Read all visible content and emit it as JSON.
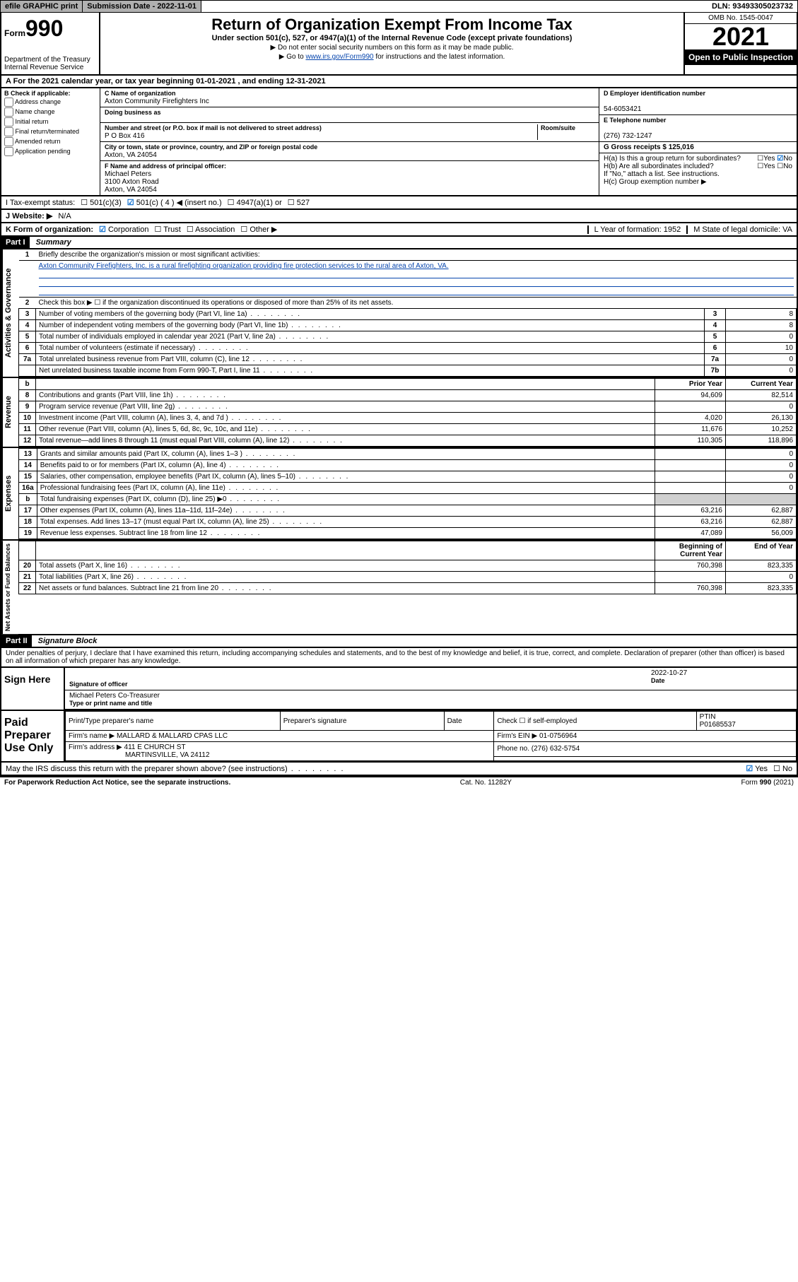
{
  "topbar": {
    "efile": "efile GRAPHIC print",
    "subdate_label": "Submission Date - 2022-11-01",
    "dln": "DLN: 93493305023732"
  },
  "header": {
    "form_small": "Form",
    "form_big": "990",
    "dept": "Department of the Treasury",
    "irs": "Internal Revenue Service",
    "title": "Return of Organization Exempt From Income Tax",
    "subtitle": "Under section 501(c), 527, or 4947(a)(1) of the Internal Revenue Code (except private foundations)",
    "note1": "▶ Do not enter social security numbers on this form as it may be made public.",
    "note2_pre": "▶ Go to ",
    "note2_link": "www.irs.gov/Form990",
    "note2_post": " for instructions and the latest information.",
    "omb": "OMB No. 1545-0047",
    "year": "2021",
    "open": "Open to Public Inspection"
  },
  "rowA": "A For the 2021 calendar year, or tax year beginning 01-01-2021    , and ending 12-31-2021",
  "colB": {
    "title": "B Check if applicable:",
    "opts": [
      "Address change",
      "Name change",
      "Initial return",
      "Final return/terminated",
      "Amended return",
      "Application pending"
    ]
  },
  "org": {
    "c_label": "C Name of organization",
    "c_name": "Axton Community Firefighters Inc",
    "dba": "Doing business as",
    "addr_label": "Number and street (or P.O. box if mail is not delivered to street address)",
    "addr_room": "Room/suite",
    "addr": "P O Box 416",
    "city_label": "City or town, state or province, country, and ZIP or foreign postal code",
    "city": "Axton, VA  24054",
    "f_label": "F Name and address of principal officer:",
    "f_name": "Michael Peters",
    "f_addr1": "3100 Axton Road",
    "f_addr2": "Axton, VA  24054"
  },
  "right": {
    "d_label": "D Employer identification number",
    "d_val": "54-6053421",
    "e_label": "E Telephone number",
    "e_val": "(276) 732-1247",
    "g_label": "G Gross receipts $ 125,016",
    "ha": "H(a)  Is this a group return for subordinates?",
    "hb": "H(b)  Are all subordinates included?",
    "hb_note": "If \"No,\" attach a list. See instructions.",
    "hc": "H(c)  Group exemption number ▶"
  },
  "rowI": {
    "label": "I   Tax-exempt status:",
    "opt1": "501(c)(3)",
    "opt2": "501(c) ( 4 ) ◀ (insert no.)",
    "opt3": "4947(a)(1) or",
    "opt4": "527"
  },
  "rowJ": {
    "label": "J   Website: ▶",
    "val": "N/A"
  },
  "rowK": {
    "label": "K Form of organization:",
    "opts": [
      "Corporation",
      "Trust",
      "Association",
      "Other ▶"
    ],
    "l": "L Year of formation: 1952",
    "m": "M State of legal domicile: VA"
  },
  "part1": {
    "header": "Part I",
    "title": "Summary",
    "line1": "Briefly describe the organization's mission or most significant activities:",
    "mission": "Axton Community Firefighters, Inc. is a rural firefighting organization providing fire protection services to the rural area of Axton, VA.",
    "line2": "Check this box ▶ ☐  if the organization discontinued its operations or disposed of more than 25% of its net assets."
  },
  "governance": [
    {
      "n": "3",
      "t": "Number of voting members of the governing body (Part VI, line 1a)",
      "r": "3",
      "v": "8"
    },
    {
      "n": "4",
      "t": "Number of independent voting members of the governing body (Part VI, line 1b)",
      "r": "4",
      "v": "8"
    },
    {
      "n": "5",
      "t": "Total number of individuals employed in calendar year 2021 (Part V, line 2a)",
      "r": "5",
      "v": "0"
    },
    {
      "n": "6",
      "t": "Total number of volunteers (estimate if necessary)",
      "r": "6",
      "v": "10"
    },
    {
      "n": "7a",
      "t": "Total unrelated business revenue from Part VIII, column (C), line 12",
      "r": "7a",
      "v": "0"
    },
    {
      "n": "",
      "t": "Net unrelated business taxable income from Form 990-T, Part I, line 11",
      "r": "7b",
      "v": "0"
    }
  ],
  "revenue_hdr": {
    "n": "b",
    "prior": "Prior Year",
    "curr": "Current Year"
  },
  "revenue": [
    {
      "n": "8",
      "t": "Contributions and grants (Part VIII, line 1h)",
      "p": "94,609",
      "c": "82,514"
    },
    {
      "n": "9",
      "t": "Program service revenue (Part VIII, line 2g)",
      "p": "",
      "c": "0"
    },
    {
      "n": "10",
      "t": "Investment income (Part VIII, column (A), lines 3, 4, and 7d )",
      "p": "4,020",
      "c": "26,130"
    },
    {
      "n": "11",
      "t": "Other revenue (Part VIII, column (A), lines 5, 6d, 8c, 9c, 10c, and 11e)",
      "p": "11,676",
      "c": "10,252"
    },
    {
      "n": "12",
      "t": "Total revenue—add lines 8 through 11 (must equal Part VIII, column (A), line 12)",
      "p": "110,305",
      "c": "118,896"
    }
  ],
  "expenses": [
    {
      "n": "13",
      "t": "Grants and similar amounts paid (Part IX, column (A), lines 1–3 )",
      "p": "",
      "c": "0"
    },
    {
      "n": "14",
      "t": "Benefits paid to or for members (Part IX, column (A), line 4)",
      "p": "",
      "c": "0"
    },
    {
      "n": "15",
      "t": "Salaries, other compensation, employee benefits (Part IX, column (A), lines 5–10)",
      "p": "",
      "c": "0"
    },
    {
      "n": "16a",
      "t": "Professional fundraising fees (Part IX, column (A), line 11e)",
      "p": "",
      "c": "0"
    },
    {
      "n": "b",
      "t": "Total fundraising expenses (Part IX, column (D), line 25) ▶0",
      "p": "shaded",
      "c": "shaded"
    },
    {
      "n": "17",
      "t": "Other expenses (Part IX, column (A), lines 11a–11d, 11f–24e)",
      "p": "63,216",
      "c": "62,887"
    },
    {
      "n": "18",
      "t": "Total expenses. Add lines 13–17 (must equal Part IX, column (A), line 25)",
      "p": "63,216",
      "c": "62,887"
    },
    {
      "n": "19",
      "t": "Revenue less expenses. Subtract line 18 from line 12",
      "p": "47,089",
      "c": "56,009"
    }
  ],
  "assets_hdr": {
    "prior": "Beginning of Current Year",
    "curr": "End of Year"
  },
  "assets": [
    {
      "n": "20",
      "t": "Total assets (Part X, line 16)",
      "p": "760,398",
      "c": "823,335"
    },
    {
      "n": "21",
      "t": "Total liabilities (Part X, line 26)",
      "p": "",
      "c": "0"
    },
    {
      "n": "22",
      "t": "Net assets or fund balances. Subtract line 21 from line 20",
      "p": "760,398",
      "c": "823,335"
    }
  ],
  "part2": {
    "header": "Part II",
    "title": "Signature Block",
    "decl": "Under penalties of perjury, I declare that I have examined this return, including accompanying schedules and statements, and to the best of my knowledge and belief, it is true, correct, and complete. Declaration of preparer (other than officer) is based on all information of which preparer has any knowledge."
  },
  "sign": {
    "here": "Sign Here",
    "sig_label": "Signature of officer",
    "date_label": "Date",
    "date": "2022-10-27",
    "name": "Michael Peters Co-Treasurer",
    "name_label": "Type or print name and title"
  },
  "prep": {
    "title": "Paid Preparer Use Only",
    "h1": "Print/Type preparer's name",
    "h2": "Preparer's signature",
    "h3": "Date",
    "h4_pre": "Check ☐ if self-employed",
    "h5": "PTIN",
    "ptin": "P01685537",
    "firm_label": "Firm's name   ▶",
    "firm": "MALLARD & MALLARD CPAS LLC",
    "ein_label": "Firm's EIN ▶",
    "ein": "01-0756964",
    "addr_label": "Firm's address ▶",
    "addr1": "411 E CHURCH ST",
    "addr2": "MARTINSVILLE, VA  24112",
    "phone_label": "Phone no.",
    "phone": "(276) 632-5754"
  },
  "bottom": {
    "discuss": "May the IRS discuss this return with the preparer shown above? (see instructions)",
    "yes": "Yes",
    "no": "No",
    "pra": "For Paperwork Reduction Act Notice, see the separate instructions.",
    "cat": "Cat. No. 11282Y",
    "form": "Form 990 (2021)"
  }
}
